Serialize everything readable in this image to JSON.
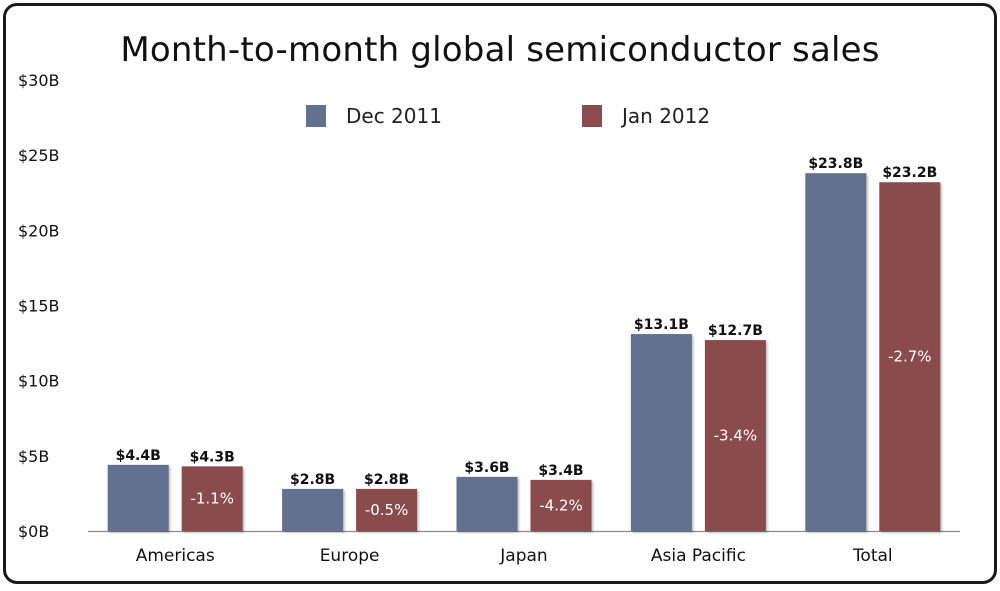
{
  "colors": {
    "dec_2011": "#62718f",
    "jan_2012": "#8a4c4e",
    "axis": "#8a8a8a",
    "text": "#111111",
    "frame": "#1a1a1a"
  },
  "chart_data": {
    "type": "bar",
    "title": "Month-to-month global semiconductor sales",
    "xlabel": "",
    "ylabel": "",
    "ylim": [
      0,
      30
    ],
    "grid": false,
    "legend_position": "top-center",
    "y_ticks": [
      "$0B",
      "$5B",
      "$10B",
      "$15B",
      "$20B",
      "$25B",
      "$30B"
    ],
    "categories": [
      "Americas",
      "Europe",
      "Japan",
      "Asia Pacific",
      "Total"
    ],
    "series": [
      {
        "name": "Dec 2011",
        "values": [
          4.4,
          2.8,
          3.6,
          13.1,
          23.8
        ],
        "labels": [
          "$4.4B",
          "$2.8B",
          "$3.6B",
          "$13.1B",
          "$23.8B"
        ]
      },
      {
        "name": "Jan 2012",
        "values": [
          4.3,
          2.8,
          3.4,
          12.7,
          23.2
        ],
        "labels": [
          "$4.3B",
          "$2.8B",
          "$3.4B",
          "$12.7B",
          "$23.2B"
        ],
        "change_labels": [
          "-1.1%",
          "-0.5%",
          "-4.2%",
          "-3.4%",
          "-2.7%"
        ]
      }
    ]
  }
}
